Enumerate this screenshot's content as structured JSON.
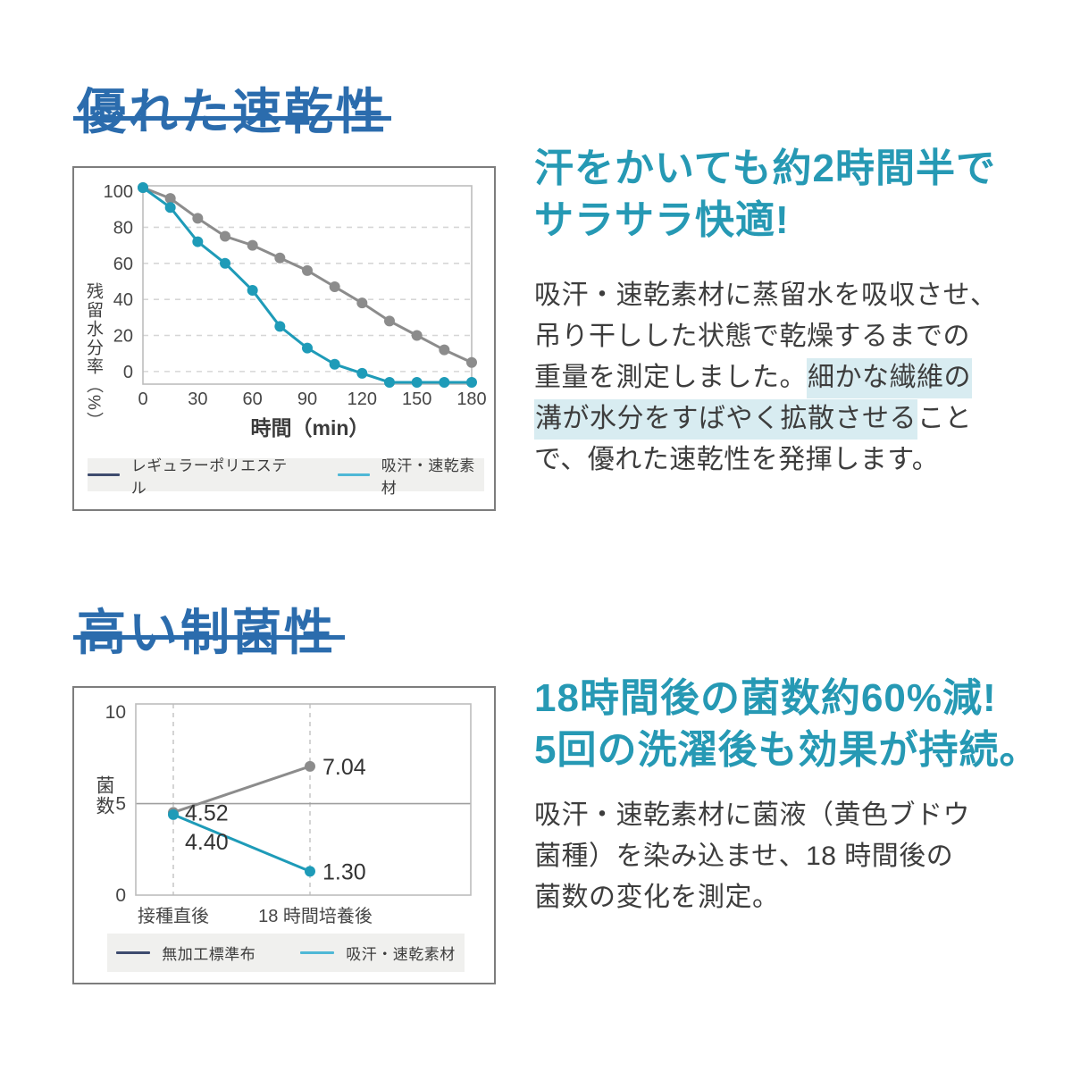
{
  "colors": {
    "accent_blue": "#2b6cad",
    "teal_heading": "#2699b4",
    "teal_line": "#1e9bb8",
    "gray_line": "#8c8c8c",
    "legend_navy_swatch": "#3e4b6e",
    "legend_teal_swatch": "#4fb8d6",
    "highlight": "#d8ecf1",
    "body_text": "#3d3d3d",
    "plot_border": "#bdbdbd",
    "grid_dashed": "#d6d6d6",
    "legend_bg": "#f0f0ee"
  },
  "section_drying": {
    "title": "優れた速乾性",
    "headline_lines": [
      "汗をかいても約2時間半で",
      "サラサラ快適!"
    ],
    "body_lines": [
      [
        {
          "t": "吸汗・速乾素材に蒸留水を吸収させ、"
        }
      ],
      [
        {
          "t": "吊り干しした状態で乾燥するまでの"
        }
      ],
      [
        {
          "t": "重量を測定しました。"
        },
        {
          "t": "細かな繊維の",
          "hl": true
        }
      ],
      [
        {
          "t": "溝が水分をすばやく拡散させる",
          "hl": true
        },
        {
          "t": "こと"
        }
      ],
      [
        {
          "t": "で、優れた速乾性を発揮します。"
        }
      ]
    ]
  },
  "section_antibacterial": {
    "title": "高い制菌性",
    "headline_lines": [
      "18時間後の菌数約60%減!",
      "5回の洗濯後も効果が持続。"
    ],
    "body_lines": [
      [
        {
          "t": "吸汗・速乾素材に菌液（黄色ブドウ"
        }
      ],
      [
        {
          "t": "菌種）を染み込ませ、18 時間後の"
        }
      ],
      [
        {
          "t": "菌数の変化を測定。"
        }
      ]
    ]
  },
  "chart_data": [
    {
      "type": "line",
      "xlabel": "時間（min）",
      "ylabel": "残留水分率（%）",
      "x": [
        0,
        15,
        30,
        45,
        60,
        75,
        90,
        105,
        120,
        135,
        150,
        165,
        180
      ],
      "xticks": [
        0,
        30,
        60,
        90,
        120,
        150,
        180
      ],
      "yticks": [
        0,
        20,
        40,
        60,
        80,
        100
      ],
      "xlim": [
        0,
        180
      ],
      "ylim": [
        -7,
        103
      ],
      "grid": "dashed-horizontal",
      "legend_position": "bottom",
      "series": [
        {
          "name": "レギュラーポリエステル",
          "line_color": "#8c8c8c",
          "legend_swatch_color": "#3e4b6e",
          "values": [
            102,
            96,
            85,
            75,
            70,
            63,
            56,
            47,
            38,
            28,
            20,
            12,
            5
          ]
        },
        {
          "name": "吸汗・速乾素材",
          "line_color": "#1e9bb8",
          "legend_swatch_color": "#4fb8d6",
          "values": [
            102,
            91,
            72,
            60,
            45,
            25,
            13,
            4,
            -1,
            -6,
            -6,
            -6,
            -6
          ]
        }
      ]
    },
    {
      "type": "line",
      "ylabel": "菌数",
      "categories": [
        "接種直後",
        "18 時間培養後"
      ],
      "yticks": [
        0,
        5,
        10
      ],
      "ylim": [
        0,
        10.45
      ],
      "grid": "dashed-vertical, solid line at 5",
      "legend_position": "bottom",
      "series": [
        {
          "name": "無加工標準布",
          "line_color": "#8c8c8c",
          "legend_swatch_color": "#3e4b6e",
          "values": [
            4.52,
            7.04
          ],
          "point_labels": [
            "4.52",
            "7.04"
          ]
        },
        {
          "name": "吸汗・速乾素材",
          "line_color": "#1e9bb8",
          "legend_swatch_color": "#4fb8d6",
          "values": [
            4.4,
            1.3
          ],
          "point_labels": [
            "4.40",
            "1.30"
          ]
        }
      ]
    }
  ]
}
